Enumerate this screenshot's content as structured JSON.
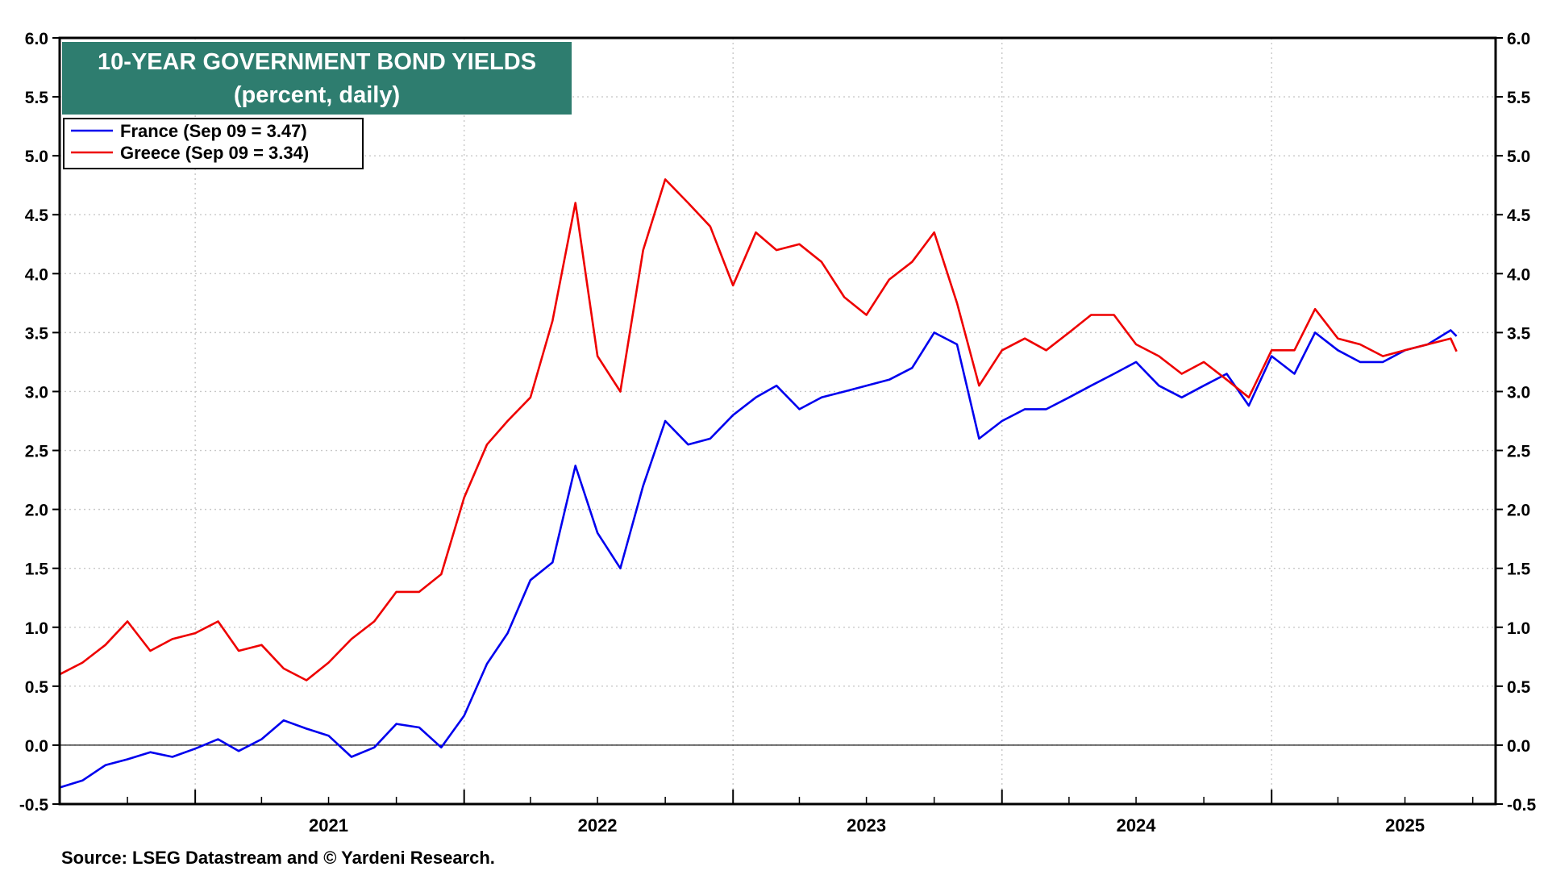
{
  "chart_data": {
    "type": "line",
    "title": "10-YEAR GOVERNMENT BOND YIELDS",
    "subtitle": "(percent, daily)",
    "ylim": [
      -0.5,
      6.0
    ],
    "y_ticks": [
      "6.0",
      "5.5",
      "5.0",
      "4.5",
      "4.0",
      "3.5",
      "3.0",
      "2.5",
      "2.0",
      "1.5",
      "1.0",
      "0.5",
      "0.0",
      "-0.5"
    ],
    "x_ticks": [
      "2021",
      "2022",
      "2023",
      "2024",
      "2025"
    ],
    "x_range": [
      "2020-07-01",
      "2025-11-01"
    ],
    "legend_position": "top-left",
    "grid": true,
    "series": [
      {
        "name": "France (Sep 09 = 3.47)",
        "color": "#0000ee",
        "points": [
          [
            "2020-07-01",
            -0.36
          ],
          [
            "2020-08-01",
            -0.3
          ],
          [
            "2020-09-01",
            -0.17
          ],
          [
            "2020-10-01",
            -0.12
          ],
          [
            "2020-11-01",
            -0.06
          ],
          [
            "2020-12-01",
            -0.1
          ],
          [
            "2021-01-01",
            -0.03
          ],
          [
            "2021-02-01",
            0.05
          ],
          [
            "2021-03-01",
            -0.05
          ],
          [
            "2021-04-01",
            0.05
          ],
          [
            "2021-05-01",
            0.21
          ],
          [
            "2021-06-01",
            0.14
          ],
          [
            "2021-07-01",
            0.08
          ],
          [
            "2021-08-01",
            -0.1
          ],
          [
            "2021-09-01",
            -0.02
          ],
          [
            "2021-10-01",
            0.18
          ],
          [
            "2021-11-01",
            0.15
          ],
          [
            "2021-12-01",
            -0.02
          ],
          [
            "2022-01-01",
            0.25
          ],
          [
            "2022-02-01",
            0.69
          ],
          [
            "2022-03-01",
            0.95
          ],
          [
            "2022-04-01",
            1.4
          ],
          [
            "2022-05-01",
            1.55
          ],
          [
            "2022-06-01",
            2.37
          ],
          [
            "2022-07-01",
            1.8
          ],
          [
            "2022-08-01",
            1.5
          ],
          [
            "2022-09-01",
            2.2
          ],
          [
            "2022-10-01",
            2.75
          ],
          [
            "2022-11-01",
            2.55
          ],
          [
            "2022-12-01",
            2.6
          ],
          [
            "2023-01-01",
            2.8
          ],
          [
            "2023-02-01",
            2.95
          ],
          [
            "2023-03-01",
            3.05
          ],
          [
            "2023-04-01",
            2.85
          ],
          [
            "2023-05-01",
            2.95
          ],
          [
            "2023-06-01",
            3.0
          ],
          [
            "2023-07-01",
            3.05
          ],
          [
            "2023-08-01",
            3.1
          ],
          [
            "2023-09-01",
            3.2
          ],
          [
            "2023-10-01",
            3.5
          ],
          [
            "2023-11-01",
            3.4
          ],
          [
            "2023-12-01",
            2.6
          ],
          [
            "2024-01-01",
            2.75
          ],
          [
            "2024-02-01",
            2.85
          ],
          [
            "2024-03-01",
            2.85
          ],
          [
            "2024-04-01",
            2.95
          ],
          [
            "2024-05-01",
            3.05
          ],
          [
            "2024-06-01",
            3.15
          ],
          [
            "2024-07-01",
            3.25
          ],
          [
            "2024-08-01",
            3.05
          ],
          [
            "2024-09-01",
            2.95
          ],
          [
            "2024-10-01",
            3.05
          ],
          [
            "2024-11-01",
            3.15
          ],
          [
            "2024-12-01",
            2.88
          ],
          [
            "2025-01-01",
            3.3
          ],
          [
            "2025-02-01",
            3.15
          ],
          [
            "2025-03-01",
            3.5
          ],
          [
            "2025-04-01",
            3.35
          ],
          [
            "2025-05-01",
            3.25
          ],
          [
            "2025-06-01",
            3.25
          ],
          [
            "2025-07-01",
            3.35
          ],
          [
            "2025-08-01",
            3.4
          ],
          [
            "2025-09-01",
            3.52
          ],
          [
            "2025-09-09",
            3.47
          ]
        ]
      },
      {
        "name": "Greece (Sep 09 = 3.34)",
        "color": "#ee0000",
        "points": [
          [
            "2020-07-01",
            0.6
          ],
          [
            "2020-08-01",
            0.7
          ],
          [
            "2020-09-01",
            0.85
          ],
          [
            "2020-10-01",
            1.05
          ],
          [
            "2020-11-01",
            0.8
          ],
          [
            "2020-12-01",
            0.9
          ],
          [
            "2021-01-01",
            0.95
          ],
          [
            "2021-02-01",
            1.05
          ],
          [
            "2021-03-01",
            0.8
          ],
          [
            "2021-04-01",
            0.85
          ],
          [
            "2021-05-01",
            0.65
          ],
          [
            "2021-06-01",
            0.55
          ],
          [
            "2021-07-01",
            0.7
          ],
          [
            "2021-08-01",
            0.9
          ],
          [
            "2021-09-01",
            1.05
          ],
          [
            "2021-10-01",
            1.3
          ],
          [
            "2021-11-01",
            1.3
          ],
          [
            "2021-12-01",
            1.45
          ],
          [
            "2022-01-01",
            2.1
          ],
          [
            "2022-02-01",
            2.55
          ],
          [
            "2022-03-01",
            2.75
          ],
          [
            "2022-04-01",
            2.95
          ],
          [
            "2022-05-01",
            3.6
          ],
          [
            "2022-06-01",
            4.6
          ],
          [
            "2022-07-01",
            3.3
          ],
          [
            "2022-08-01",
            3.0
          ],
          [
            "2022-09-01",
            4.2
          ],
          [
            "2022-10-01",
            4.8
          ],
          [
            "2022-11-01",
            4.6
          ],
          [
            "2022-12-01",
            4.4
          ],
          [
            "2023-01-01",
            3.9
          ],
          [
            "2023-02-01",
            4.35
          ],
          [
            "2023-03-01",
            4.2
          ],
          [
            "2023-04-01",
            4.25
          ],
          [
            "2023-05-01",
            4.1
          ],
          [
            "2023-06-01",
            3.8
          ],
          [
            "2023-07-01",
            3.65
          ],
          [
            "2023-08-01",
            3.95
          ],
          [
            "2023-09-01",
            4.1
          ],
          [
            "2023-10-01",
            4.35
          ],
          [
            "2023-11-01",
            3.75
          ],
          [
            "2023-12-01",
            3.05
          ],
          [
            "2024-01-01",
            3.35
          ],
          [
            "2024-02-01",
            3.45
          ],
          [
            "2024-03-01",
            3.35
          ],
          [
            "2024-04-01",
            3.5
          ],
          [
            "2024-05-01",
            3.65
          ],
          [
            "2024-06-01",
            3.65
          ],
          [
            "2024-07-01",
            3.4
          ],
          [
            "2024-08-01",
            3.3
          ],
          [
            "2024-09-01",
            3.15
          ],
          [
            "2024-10-01",
            3.25
          ],
          [
            "2024-11-01",
            3.1
          ],
          [
            "2024-12-01",
            2.95
          ],
          [
            "2025-01-01",
            3.35
          ],
          [
            "2025-02-01",
            3.35
          ],
          [
            "2025-03-01",
            3.7
          ],
          [
            "2025-04-01",
            3.45
          ],
          [
            "2025-05-01",
            3.4
          ],
          [
            "2025-06-01",
            3.3
          ],
          [
            "2025-07-01",
            3.35
          ],
          [
            "2025-08-01",
            3.4
          ],
          [
            "2025-09-01",
            3.45
          ],
          [
            "2025-09-09",
            3.34
          ]
        ]
      }
    ],
    "source": "Source: LSEG Datastream and © Yardeni Research."
  }
}
